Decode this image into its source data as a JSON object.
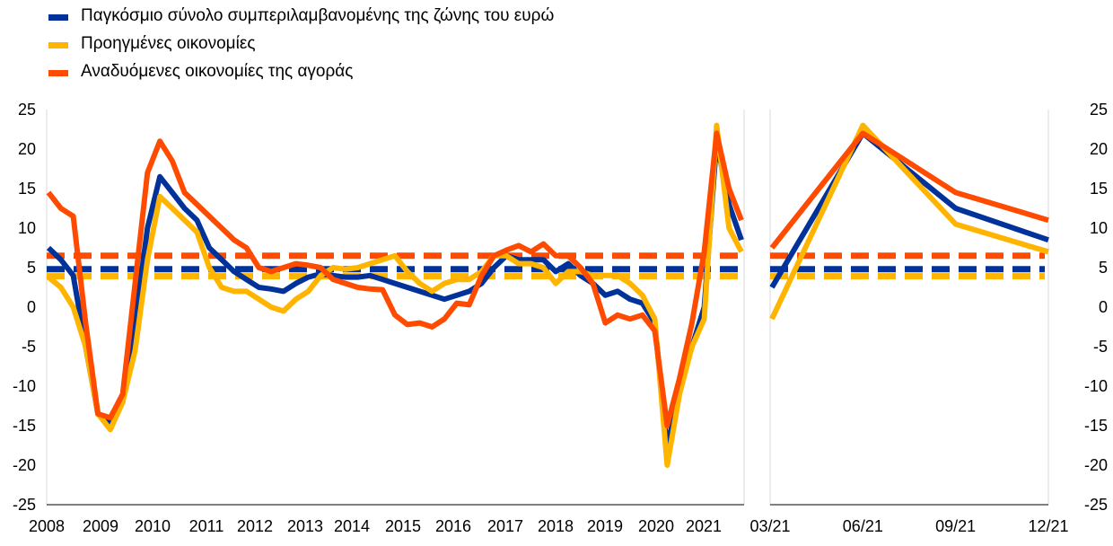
{
  "colors": {
    "euro_area": "#003299",
    "advanced": "#FFB400",
    "emerging": "#FF4B00"
  },
  "legend": [
    {
      "label": "Παγκόσμιο σύνολο συμπεριλαμβανομένης της ζώνης του ευρώ",
      "color": "#003299"
    },
    {
      "label": "Προηγμένες οικονομίες",
      "color": "#FFB400"
    },
    {
      "label": "Αναδυόμενες οικονομίες της αγοράς",
      "color": "#FF4B00"
    }
  ],
  "chart_data": [
    {
      "type": "line",
      "panel": "left",
      "x_labels": [
        "2008",
        "2009",
        "2010",
        "2011",
        "2012",
        "2013",
        "2014",
        "2015",
        "2016",
        "2017",
        "2018",
        "2019",
        "2020",
        "2021"
      ],
      "ylim": [
        -25,
        25
      ],
      "y_ticks": [
        "25",
        "20",
        "15",
        "10",
        "5",
        "0",
        "-5",
        "-10",
        "-15",
        "-20",
        "-25"
      ],
      "series": [
        {
          "name": "Παγκόσμιο σύνολο συμπεριλαμβανομένης της ζώνης του ευρώ",
          "color": "#003299",
          "average": 4.8,
          "values": [
            7.5,
            6.0,
            4.0,
            -5.0,
            -13.5,
            -14.5,
            -12.0,
            -2.0,
            10.0,
            16.5,
            14.5,
            12.5,
            11.0,
            7.5,
            6.0,
            4.5,
            3.5,
            2.5,
            2.3,
            2.0,
            3.0,
            3.8,
            4.2,
            4.0,
            3.8,
            3.8,
            4.0,
            3.5,
            3.0,
            2.5,
            2.0,
            1.5,
            1.0,
            1.5,
            2.0,
            3.0,
            5.0,
            6.5,
            6.0,
            6.0,
            6.0,
            4.5,
            5.5,
            4.0,
            3.0,
            1.5,
            2.0,
            1.0,
            0.5,
            -2.0,
            -18.0,
            -10.0,
            -5.0,
            0.0,
            21.0,
            13.0,
            8.5
          ]
        },
        {
          "name": "Προηγμένες οικονομίες",
          "color": "#FFB400",
          "average": 3.9,
          "values": [
            3.8,
            2.5,
            0.0,
            -5.0,
            -13.5,
            -15.5,
            -12.0,
            -5.5,
            6.0,
            14.0,
            12.5,
            11.0,
            9.5,
            5.0,
            2.5,
            2.0,
            2.0,
            1.0,
            0.0,
            -0.5,
            1.0,
            2.0,
            4.0,
            5.0,
            4.8,
            5.0,
            5.5,
            6.0,
            6.5,
            4.5,
            3.0,
            2.0,
            3.0,
            3.5,
            3.5,
            4.5,
            6.5,
            6.5,
            5.5,
            5.5,
            5.0,
            3.0,
            4.5,
            4.5,
            4.0,
            4.0,
            4.0,
            3.0,
            1.5,
            -1.5,
            -20.0,
            -11.0,
            -5.0,
            -1.5,
            23.0,
            10.0,
            7.0
          ]
        },
        {
          "name": "Αναδυόμενες οικονομίες της αγοράς",
          "color": "#FF4B00",
          "average": 6.5,
          "values": [
            14.5,
            12.5,
            11.5,
            -2.0,
            -13.5,
            -14.0,
            -11.0,
            3.0,
            17.0,
            21.0,
            18.5,
            14.5,
            13.0,
            11.5,
            10.0,
            8.5,
            7.5,
            5.0,
            4.5,
            5.0,
            5.5,
            5.3,
            5.0,
            3.5,
            3.0,
            2.5,
            2.3,
            2.2,
            -1.0,
            -2.2,
            -2.0,
            -2.5,
            -1.5,
            0.5,
            0.3,
            4.0,
            6.5,
            7.2,
            7.8,
            7.0,
            8.0,
            6.5,
            6.5,
            5.0,
            3.0,
            -2.0,
            -1.0,
            -1.5,
            -1.0,
            -3.0,
            -15.0,
            -9.0,
            -2.0,
            7.0,
            22.0,
            15.0,
            11.0
          ]
        }
      ]
    },
    {
      "type": "line",
      "panel": "right",
      "x_labels": [
        "03/21",
        "06/21",
        "09/21",
        "12/21"
      ],
      "ylim": [
        -25,
        25
      ],
      "y_ticks": [
        "25",
        "20",
        "15",
        "10",
        "5",
        "0",
        "-5",
        "-10",
        "-15",
        "-20",
        "-25"
      ],
      "series": [
        {
          "name": "Παγκόσμιο σύνολο συμπεριλαμβανομένης της ζώνης του ευρώ",
          "color": "#003299",
          "average": 4.8,
          "values": [
            2.5,
            22.0,
            12.5,
            8.5
          ]
        },
        {
          "name": "Προηγμένες οικονομίες",
          "color": "#FFB400",
          "average": 3.9,
          "values": [
            -1.5,
            23.0,
            10.5,
            7.0
          ]
        },
        {
          "name": "Αναδυόμενες οικονομίες της αγοράς",
          "color": "#FF4B00",
          "average": 6.5,
          "values": [
            7.5,
            22.0,
            14.5,
            11.0
          ]
        }
      ]
    }
  ]
}
